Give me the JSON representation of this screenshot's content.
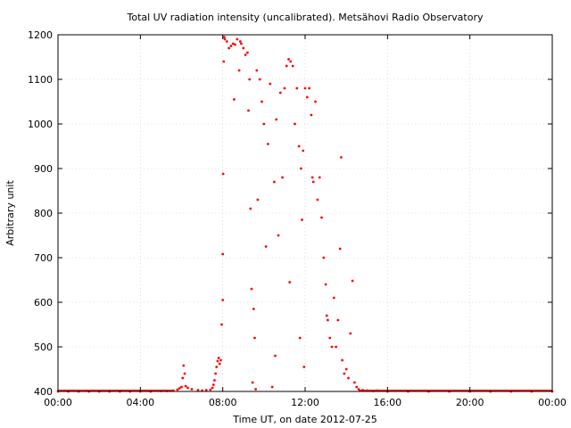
{
  "chart_data": {
    "type": "scatter",
    "title": "Total UV radiation intensity (uncalibrated). Metsähovi Radio Observatory",
    "xlabel": "Time UT, on date 2012-07-25",
    "ylabel": "Arbitrary unit",
    "xlim_hours": [
      0,
      24
    ],
    "ylim": [
      400,
      1200
    ],
    "x_ticks": [
      {
        "hour": 0,
        "label": "00:00"
      },
      {
        "hour": 4,
        "label": "04:00"
      },
      {
        "hour": 8,
        "label": "08:00"
      },
      {
        "hour": 12,
        "label": "12:00"
      },
      {
        "hour": 16,
        "label": "16:00"
      },
      {
        "hour": 20,
        "label": "20:00"
      },
      {
        "hour": 24,
        "label": "00:00"
      }
    ],
    "y_ticks": [
      400,
      500,
      600,
      700,
      800,
      900,
      1000,
      1100,
      1200
    ],
    "grid": true,
    "marker_color": "#ff0000",
    "points": [
      [
        0.0,
        400
      ],
      [
        0.5,
        400
      ],
      [
        1.0,
        400
      ],
      [
        1.5,
        400
      ],
      [
        2.0,
        400
      ],
      [
        2.5,
        400
      ],
      [
        3.0,
        400
      ],
      [
        3.5,
        400
      ],
      [
        4.0,
        400
      ],
      [
        4.5,
        400
      ],
      [
        5.0,
        401
      ],
      [
        5.3,
        401
      ],
      [
        5.6,
        402
      ],
      [
        5.8,
        404
      ],
      [
        5.9,
        407
      ],
      [
        6.0,
        410
      ],
      [
        6.05,
        430
      ],
      [
        6.1,
        458
      ],
      [
        6.15,
        440
      ],
      [
        6.2,
        412
      ],
      [
        6.3,
        408
      ],
      [
        6.5,
        405
      ],
      [
        6.8,
        403
      ],
      [
        7.0,
        402
      ],
      [
        7.2,
        403
      ],
      [
        7.4,
        404
      ],
      [
        7.5,
        408
      ],
      [
        7.55,
        415
      ],
      [
        7.6,
        425
      ],
      [
        7.65,
        440
      ],
      [
        7.7,
        455
      ],
      [
        7.75,
        468
      ],
      [
        7.8,
        475
      ],
      [
        7.85,
        462
      ],
      [
        7.9,
        470
      ],
      [
        7.95,
        550
      ],
      [
        8.0,
        605
      ],
      [
        8.0,
        708
      ],
      [
        8.02,
        888
      ],
      [
        8.05,
        1140
      ],
      [
        8.07,
        1195
      ],
      [
        8.1,
        1190
      ],
      [
        8.2,
        1185
      ],
      [
        8.3,
        1170
      ],
      [
        8.4,
        1175
      ],
      [
        8.5,
        1180
      ],
      [
        8.55,
        1055
      ],
      [
        8.6,
        1178
      ],
      [
        8.7,
        1190
      ],
      [
        8.8,
        1120
      ],
      [
        8.85,
        1185
      ],
      [
        8.9,
        1180
      ],
      [
        9.0,
        1170
      ],
      [
        9.1,
        1155
      ],
      [
        9.2,
        1160
      ],
      [
        9.25,
        1030
      ],
      [
        9.3,
        1100
      ],
      [
        9.35,
        810
      ],
      [
        9.4,
        630
      ],
      [
        9.45,
        420
      ],
      [
        9.5,
        585
      ],
      [
        9.55,
        520
      ],
      [
        9.6,
        405
      ],
      [
        9.65,
        1120
      ],
      [
        9.7,
        830
      ],
      [
        9.8,
        1100
      ],
      [
        9.9,
        1050
      ],
      [
        10.0,
        1000
      ],
      [
        10.1,
        725
      ],
      [
        10.2,
        955
      ],
      [
        10.3,
        1090
      ],
      [
        10.4,
        410
      ],
      [
        10.5,
        870
      ],
      [
        10.55,
        480
      ],
      [
        10.6,
        1010
      ],
      [
        10.7,
        750
      ],
      [
        10.8,
        1070
      ],
      [
        10.9,
        880
      ],
      [
        11.0,
        1080
      ],
      [
        11.1,
        1130
      ],
      [
        11.2,
        1145
      ],
      [
        11.25,
        645
      ],
      [
        11.3,
        1140
      ],
      [
        11.4,
        1130
      ],
      [
        11.5,
        1000
      ],
      [
        11.6,
        1080
      ],
      [
        11.7,
        950
      ],
      [
        11.75,
        520
      ],
      [
        11.8,
        900
      ],
      [
        11.85,
        785
      ],
      [
        11.9,
        940
      ],
      [
        11.95,
        455
      ],
      [
        12.0,
        1080
      ],
      [
        12.1,
        1060
      ],
      [
        12.2,
        1080
      ],
      [
        12.3,
        1020
      ],
      [
        12.35,
        880
      ],
      [
        12.4,
        870
      ],
      [
        12.5,
        1050
      ],
      [
        12.6,
        830
      ],
      [
        12.7,
        880
      ],
      [
        12.8,
        790
      ],
      [
        12.9,
        700
      ],
      [
        13.0,
        640
      ],
      [
        13.05,
        570
      ],
      [
        13.1,
        560
      ],
      [
        13.2,
        520
      ],
      [
        13.3,
        500
      ],
      [
        13.4,
        610
      ],
      [
        13.5,
        500
      ],
      [
        13.6,
        560
      ],
      [
        13.7,
        720
      ],
      [
        13.75,
        925
      ],
      [
        13.8,
        470
      ],
      [
        13.9,
        440
      ],
      [
        14.0,
        450
      ],
      [
        14.1,
        430
      ],
      [
        14.2,
        530
      ],
      [
        14.3,
        648
      ],
      [
        14.4,
        420
      ],
      [
        14.5,
        410
      ],
      [
        14.6,
        405
      ],
      [
        14.8,
        403
      ],
      [
        15.0,
        402
      ],
      [
        15.3,
        401
      ],
      [
        15.5,
        402
      ],
      [
        16.0,
        400
      ],
      [
        17.0,
        400
      ],
      [
        18.0,
        400
      ],
      [
        19.0,
        400
      ],
      [
        20.0,
        400
      ],
      [
        21.0,
        400
      ],
      [
        22.0,
        400
      ],
      [
        23.0,
        400
      ],
      [
        24.0,
        400
      ]
    ]
  }
}
